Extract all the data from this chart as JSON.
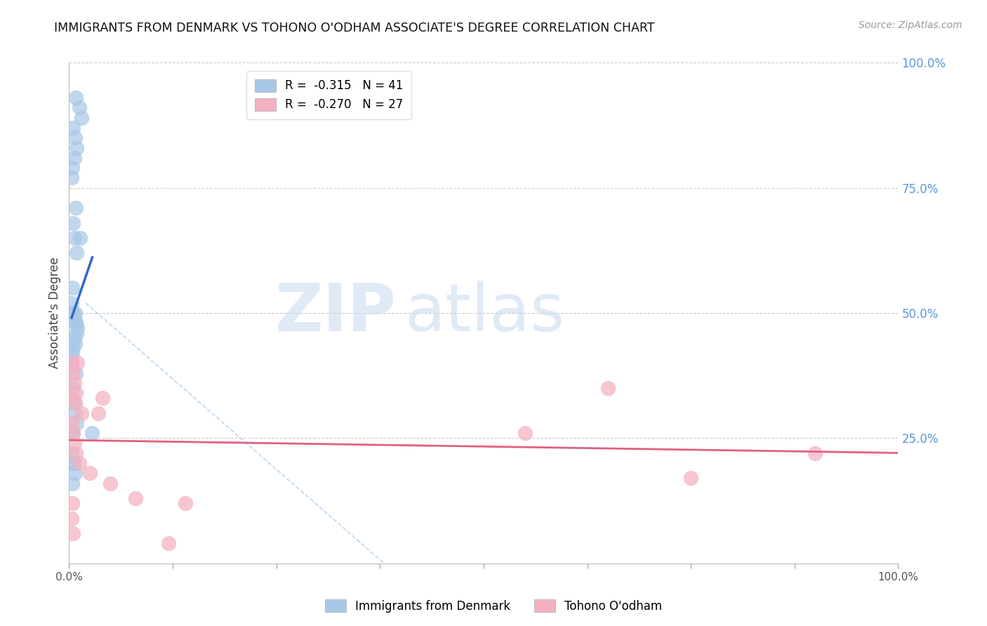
{
  "title": "IMMIGRANTS FROM DENMARK VS TOHONO O'ODHAM ASSOCIATE'S DEGREE CORRELATION CHART",
  "source": "Source: ZipAtlas.com",
  "ylabel": "Associate's Degree",
  "legend_blue_r": "R =  -0.315",
  "legend_blue_n": "N = 41",
  "legend_pink_r": "R =  -0.270",
  "legend_pink_n": "N = 27",
  "blue_color": "#a8c8e8",
  "blue_edge_color": "#a8c8e8",
  "blue_line_color": "#3366cc",
  "pink_color": "#f5b0c0",
  "pink_edge_color": "#f5b0c0",
  "pink_line_color": "#e06080",
  "dash_color": "#aaccee",
  "grid_color": "#cccccc",
  "right_tick_color": "#5599dd",
  "watermark_zip_color": "#c8daf0",
  "watermark_atlas_color": "#c8daf0",
  "blue_x": [
    0.8,
    1.2,
    1.5,
    0.5,
    0.7,
    0.9,
    0.6,
    0.4,
    0.3,
    0.8,
    0.5,
    0.6,
    0.9,
    0.4,
    0.3,
    0.5,
    0.6,
    0.8,
    1.0,
    0.9,
    0.6,
    0.7,
    0.5,
    0.4,
    0.3,
    0.8,
    0.5,
    0.6,
    0.7,
    0.9,
    0.4,
    0.5,
    1.3,
    0.7,
    0.8,
    2.8,
    0.3,
    0.5,
    0.6,
    0.7,
    0.4
  ],
  "blue_y": [
    93,
    91,
    89,
    87,
    85,
    83,
    81,
    79,
    77,
    71,
    68,
    65,
    62,
    55,
    52,
    50,
    49,
    48,
    47,
    46,
    45,
    44,
    43,
    42,
    40,
    38,
    35,
    32,
    30,
    28,
    26,
    26,
    65,
    50,
    48,
    26,
    22,
    20,
    20,
    18,
    16
  ],
  "pink_x": [
    0.3,
    0.5,
    0.6,
    0.8,
    1.0,
    0.4,
    0.7,
    1.5,
    4.0,
    0.3,
    0.5,
    0.6,
    0.8,
    1.2,
    2.5,
    5.0,
    0.4,
    3.5,
    0.3,
    8.0,
    0.5,
    12.0,
    14.0,
    55.0,
    65.0,
    75.0,
    90.0
  ],
  "pink_y": [
    40,
    38,
    36,
    34,
    40,
    33,
    32,
    30,
    33,
    28,
    26,
    24,
    22,
    20,
    18,
    16,
    12,
    30,
    9,
    13,
    6,
    4,
    12,
    26,
    35,
    17,
    22
  ],
  "xlim": [
    0,
    100
  ],
  "ylim": [
    0,
    100
  ],
  "figsize": [
    14.06,
    8.92
  ],
  "dpi": 100,
  "blue_trend_x": [
    0.3,
    2.8
  ],
  "pink_trend_x": [
    0,
    100
  ]
}
